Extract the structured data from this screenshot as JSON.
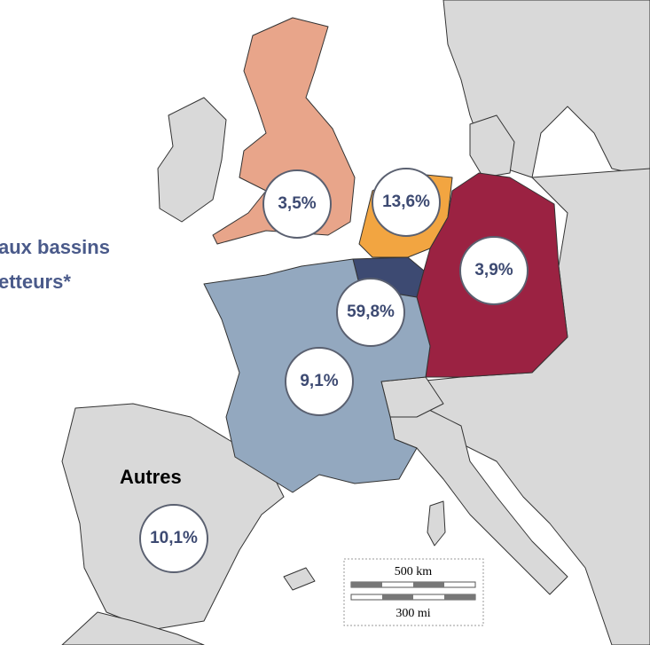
{
  "legend_text": [
    "aux bassins",
    "etteurs*"
  ],
  "other_label": "Autres",
  "regions": [
    {
      "name": "UK",
      "label": "3,5%"
    },
    {
      "name": "Netherlands",
      "label": "13,6%"
    },
    {
      "name": "Germany",
      "label": "3,9%"
    },
    {
      "name": "Belgium",
      "label": "59,8%"
    },
    {
      "name": "France",
      "label": "9,1%"
    },
    {
      "name": "Spain",
      "label": "10,1%"
    }
  ],
  "scale": {
    "km": "500 km",
    "mi": "300 mi"
  }
}
